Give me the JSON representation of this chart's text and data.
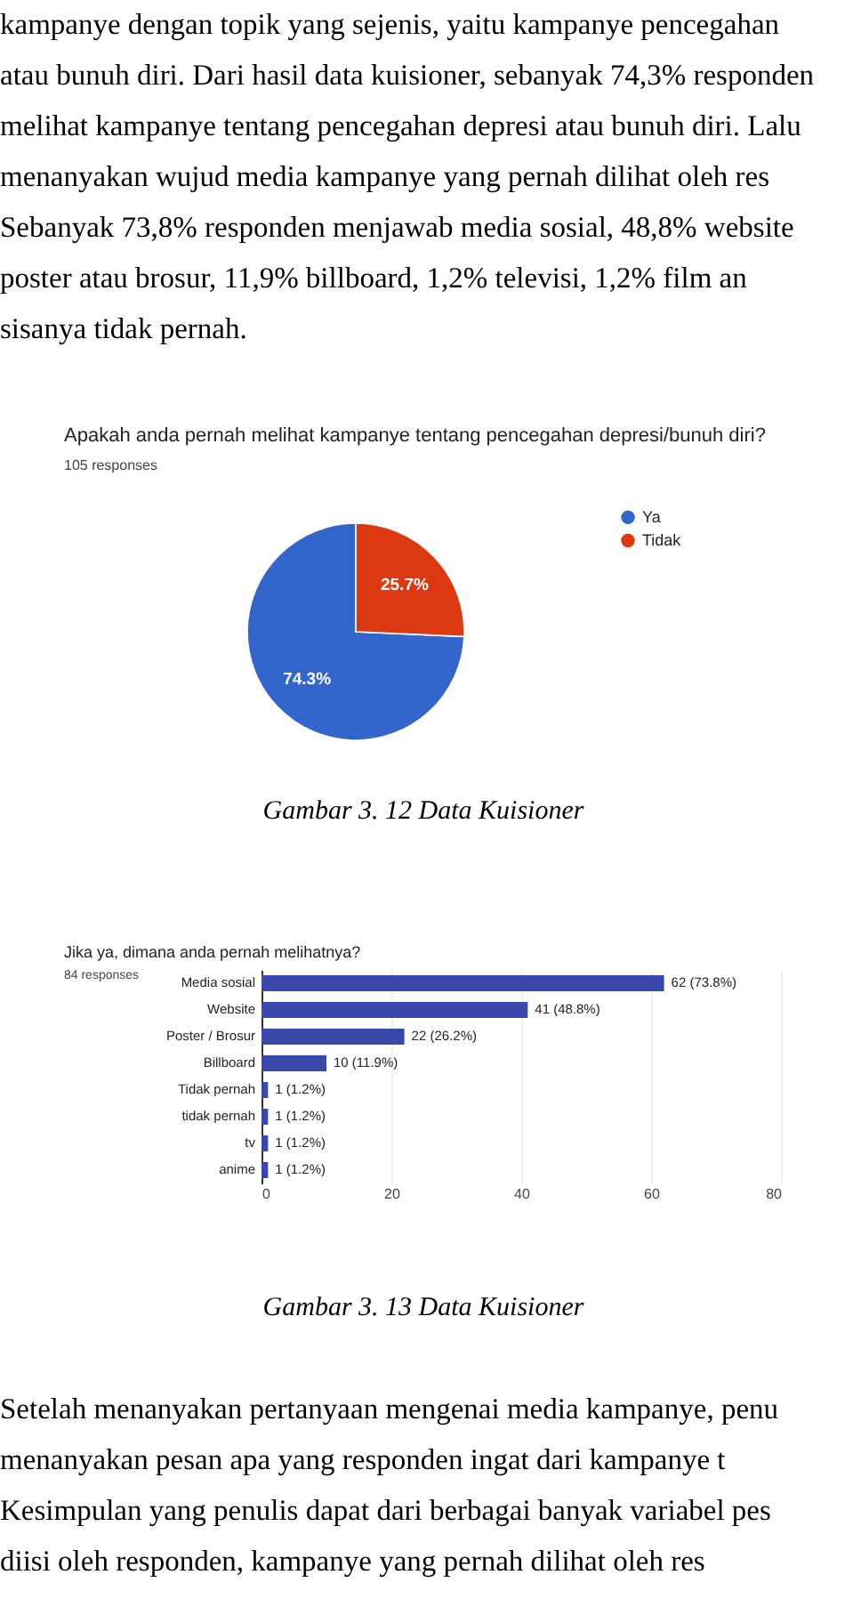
{
  "chart_data": [
    {
      "type": "other",
      "annotations": [
        "kampanye dengan topik yang sejenis, yaitu kampanye pencegahan",
        "atau bunuh diri. Dari hasil data kuisioner, sebanyak 74,3% responden",
        "melihat kampanye tentang pencegahan depresi atau bunuh diri. Lalu",
        "menanyakan wujud media kampanye yang pernah dilihat oleh res",
        "Sebanyak 73,8% responden menjawab media sosial, 48,8% website",
        "poster atau brosur, 11,9% billboard, 1,2% televisi, 1,2% film an",
        "sisanya tidak pernah."
      ]
    },
    {
      "type": "pie",
      "title": "Apakah anda pernah melihat kampanye tentang pencegahan depresi/bunuh diri?",
      "subtitle": "105 responses",
      "categories": [
        "Ya",
        "Tidak"
      ],
      "values": [
        74.3,
        25.7
      ],
      "colors": [
        "#3366cc",
        "#dc3912"
      ],
      "value_labels": [
        "74.3%",
        "25.7%"
      ],
      "legend": "top right",
      "annotations": [
        "Gambar 3. 12 Data Kuisioner"
      ]
    },
    {
      "type": "bar",
      "orientation": "horizontal",
      "title": "Jika ya, dimana anda pernah melihatnya?",
      "subtitle": "84 responses",
      "categories": [
        "Media sosial",
        "Website",
        "Poster / Brosur",
        "Billboard",
        "Tidak pernah",
        "tidak pernah",
        "tv",
        "anime"
      ],
      "values": [
        62,
        41,
        22,
        10,
        1,
        1,
        1,
        1
      ],
      "color": "#3949ab",
      "value_labels": [
        "62 (73.8%)",
        "41 (48.8%)",
        "22 (26.2%)",
        "10 (11.9%)",
        "1 (1.2%)",
        "1 (1.2%)",
        "1 (1.2%)",
        "1 (1.2%)"
      ],
      "xlim": [
        0,
        80
      ],
      "xticks": [
        0,
        20,
        40,
        60,
        80
      ],
      "grid": "x",
      "annotations": [
        "Gambar 3. 13 Data Kuisioner"
      ]
    },
    {
      "type": "other",
      "annotations": [
        "Setelah menanyakan pertanyaan mengenai media kampanye, penu",
        "menanyakan pesan apa yang responden ingat dari kampanye t",
        "Kesimpulan yang penulis dapat dari berbagai banyak variabel pes",
        "diisi oleh responden, kampanye yang pernah dilihat oleh res"
      ]
    }
  ]
}
